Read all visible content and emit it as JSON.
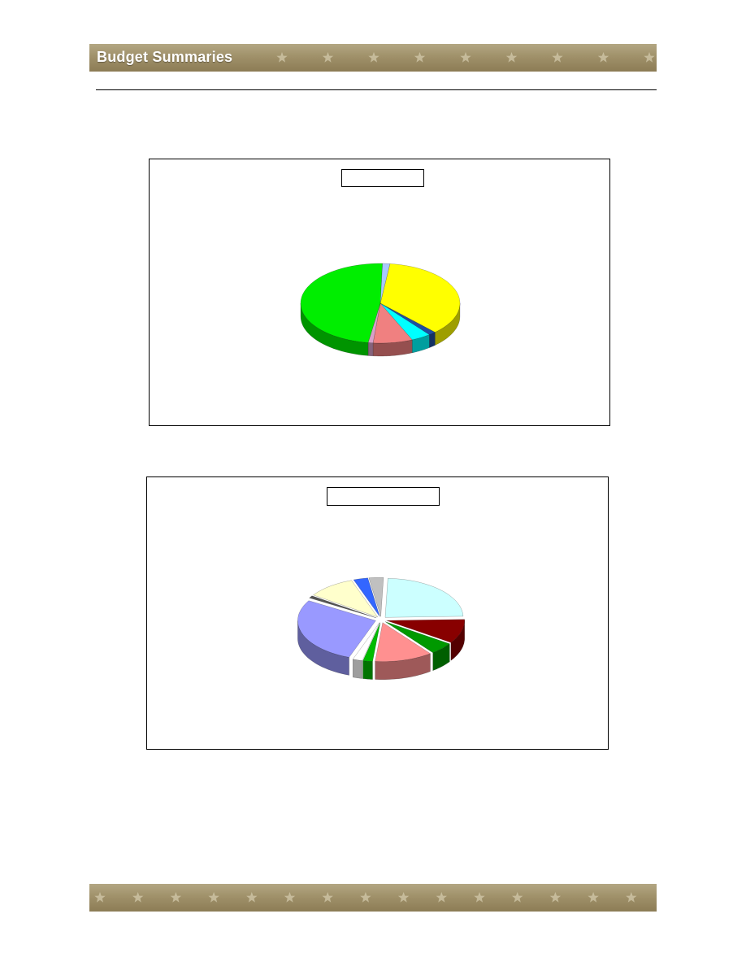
{
  "header": {
    "title": "Budget Summaries",
    "banner_color": "#a0916a"
  },
  "chart_data": [
    {
      "type": "pie",
      "title": "",
      "slices": [
        {
          "value": 36,
          "color": "#ffff00"
        },
        {
          "value": 1.5,
          "color": "#1f4fa0"
        },
        {
          "value": 4,
          "color": "#00ffff"
        },
        {
          "value": 8,
          "color": "#f08080"
        },
        {
          "value": 1,
          "color": "#d8a0c8"
        },
        {
          "value": 48,
          "color": "#00ee00"
        },
        {
          "value": 1.5,
          "color": "#a8c8ff"
        }
      ]
    },
    {
      "type": "pie",
      "title": "",
      "slices": [
        {
          "value": 24,
          "color": "#ccffff"
        },
        {
          "value": 10,
          "color": "#880000"
        },
        {
          "value": 5,
          "color": "#009900"
        },
        {
          "value": 12,
          "color": "#ff9090"
        },
        {
          "value": 2,
          "color": "#00bb00"
        },
        {
          "value": 2,
          "color": "#ffffff"
        },
        {
          "value": 28,
          "color": "#9999ff"
        },
        {
          "value": 1,
          "color": "#555555"
        },
        {
          "value": 10,
          "color": "#ffffcc"
        },
        {
          "value": 3,
          "color": "#3366ff"
        },
        {
          "value": 3,
          "color": "#c0c0c0"
        }
      ]
    }
  ]
}
